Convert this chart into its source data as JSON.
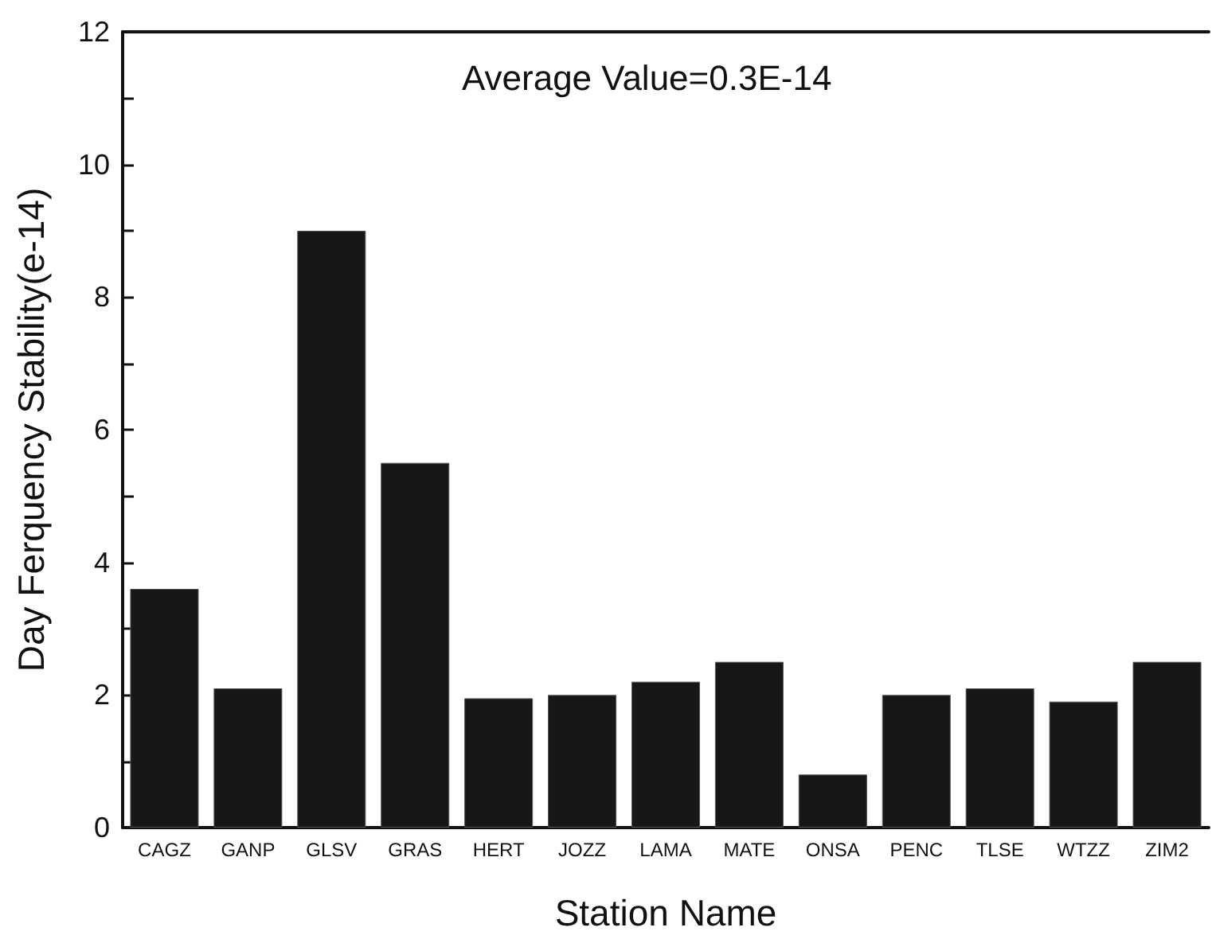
{
  "chart_data": {
    "type": "bar",
    "xlabel": "Station Name",
    "ylabel": "Day Ferquency Stability(e-14)",
    "annotations": [
      "Average Value=0.3E-14"
    ],
    "categories": [
      "CAGZ",
      "GANP",
      "GLSV",
      "GRAS",
      "HERT",
      "JOZZ",
      "LAMA",
      "MATE",
      "ONSA",
      "PENC",
      "TLSE",
      "WTZZ",
      "ZIM2"
    ],
    "values": [
      3.6,
      2.1,
      9.0,
      5.5,
      1.95,
      2.0,
      2.2,
      2.5,
      0.8,
      2.0,
      2.1,
      1.9,
      2.5
    ],
    "color": "#171717",
    "ylim": [
      0,
      12
    ],
    "yticks": [
      0,
      {
        "value": 1,
        "label": null
      },
      2,
      {
        "value": 3,
        "label": null
      },
      4,
      {
        "value": 5,
        "label": null
      },
      6,
      {
        "value": 7,
        "label": null
      },
      8,
      {
        "value": 9,
        "label": null
      },
      10,
      {
        "value": 11,
        "label": null
      },
      12
    ],
    "grid": false
  }
}
